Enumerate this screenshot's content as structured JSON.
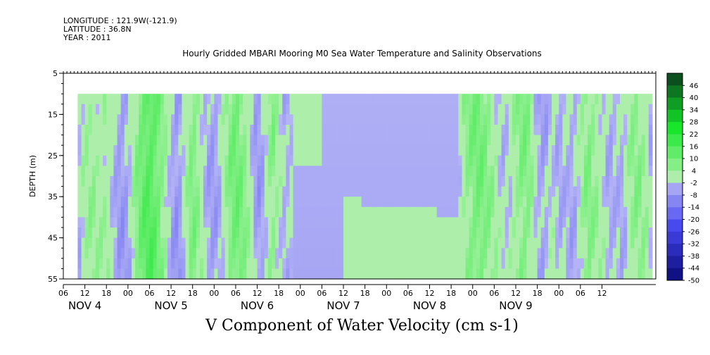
{
  "header": {
    "longitude": "LONGITUDE : 121.9W(-121.9)",
    "latitude": "LATITUDE : 36.8N",
    "year": "YEAR : 2011",
    "title": "Hourly Gridded MBARI Mooring M0 Sea Water Temperature and Salinity Observations"
  },
  "chart_data": {
    "type": "heatmap",
    "title": "V Component of Water Velocity (cm s-1)",
    "ylabel": "DEPTH (m)",
    "ylim": [
      55,
      5
    ],
    "y_ticks": [
      "5",
      "15",
      "25",
      "35",
      "45",
      "55"
    ],
    "x_hour_ticks": [
      "06",
      "12",
      "18",
      "00",
      "06",
      "12",
      "18",
      "00",
      "06",
      "12",
      "18",
      "00",
      "06",
      "12",
      "18",
      "00",
      "06",
      "12",
      "18",
      "00",
      "06",
      "12",
      "18",
      "00",
      "06",
      "12"
    ],
    "x_day_labels": [
      "NOV 4",
      "NOV 5",
      "NOV 6",
      "NOV 7",
      "NOV 8",
      "NOV 9"
    ],
    "colorbar_levels": [
      "46",
      "40",
      "34",
      "28",
      "22",
      "16",
      "10",
      "4",
      "-2",
      "-8",
      "-14",
      "-20",
      "-26",
      "-32",
      "-38",
      "-44",
      "-50"
    ],
    "colorbar_range": [
      -50,
      52
    ],
    "colorbar_step": 6,
    "data_depth_range": [
      10,
      55
    ],
    "data_time_range_hours_from_nov4_00": [
      10,
      170
    ],
    "column_means": [
      [
        10,
        -4
      ],
      [
        12,
        2
      ],
      [
        14,
        4
      ],
      [
        16,
        2
      ],
      [
        18,
        3
      ],
      [
        20,
        -2
      ],
      [
        22,
        -7
      ],
      [
        24,
        -5
      ],
      [
        26,
        4
      ],
      [
        28,
        11
      ],
      [
        30,
        15
      ],
      [
        32,
        11
      ],
      [
        34,
        5
      ],
      [
        36,
        -4
      ],
      [
        38,
        -8
      ],
      [
        40,
        0
      ],
      [
        42,
        8
      ],
      [
        44,
        3
      ],
      [
        46,
        -4
      ],
      [
        48,
        -6
      ],
      [
        50,
        -2
      ],
      [
        52,
        6
      ],
      [
        54,
        10
      ],
      [
        56,
        7
      ],
      [
        58,
        1
      ],
      [
        60,
        -7
      ],
      [
        62,
        -3
      ],
      [
        64,
        7
      ],
      [
        66,
        1
      ],
      [
        68,
        -5
      ],
      [
        70,
        0
      ],
      [
        72,
        -5
      ],
      [
        74,
        -2
      ],
      [
        76,
        -3
      ],
      [
        78,
        -2
      ],
      [
        80,
        -1
      ],
      [
        82,
        -2
      ],
      [
        84,
        -3
      ],
      [
        86,
        -2
      ],
      [
        88,
        -3
      ],
      [
        90,
        -2
      ],
      [
        92,
        -2
      ],
      [
        94,
        -2
      ],
      [
        96,
        -3
      ],
      [
        98,
        -4
      ],
      [
        100,
        -3
      ],
      [
        102,
        -4
      ],
      [
        104,
        -3
      ],
      [
        106,
        -3
      ],
      [
        108,
        -5
      ],
      [
        110,
        -5
      ],
      [
        112,
        -6
      ],
      [
        114,
        -3
      ],
      [
        116,
        -1
      ],
      [
        118,
        5
      ],
      [
        120,
        8
      ],
      [
        122,
        9
      ],
      [
        124,
        6
      ],
      [
        126,
        3
      ],
      [
        128,
        -2
      ],
      [
        130,
        -1
      ],
      [
        132,
        4
      ],
      [
        134,
        8
      ],
      [
        136,
        5
      ],
      [
        138,
        -4
      ],
      [
        140,
        -6
      ],
      [
        142,
        1
      ],
      [
        144,
        -4
      ],
      [
        146,
        -2
      ],
      [
        148,
        -5
      ],
      [
        150,
        1
      ],
      [
        152,
        7
      ],
      [
        154,
        4
      ],
      [
        156,
        1
      ],
      [
        158,
        -4
      ],
      [
        160,
        -2
      ],
      [
        162,
        -4
      ],
      [
        164,
        4
      ],
      [
        166,
        6
      ],
      [
        168,
        3
      ],
      [
        170,
        -4
      ]
    ]
  }
}
